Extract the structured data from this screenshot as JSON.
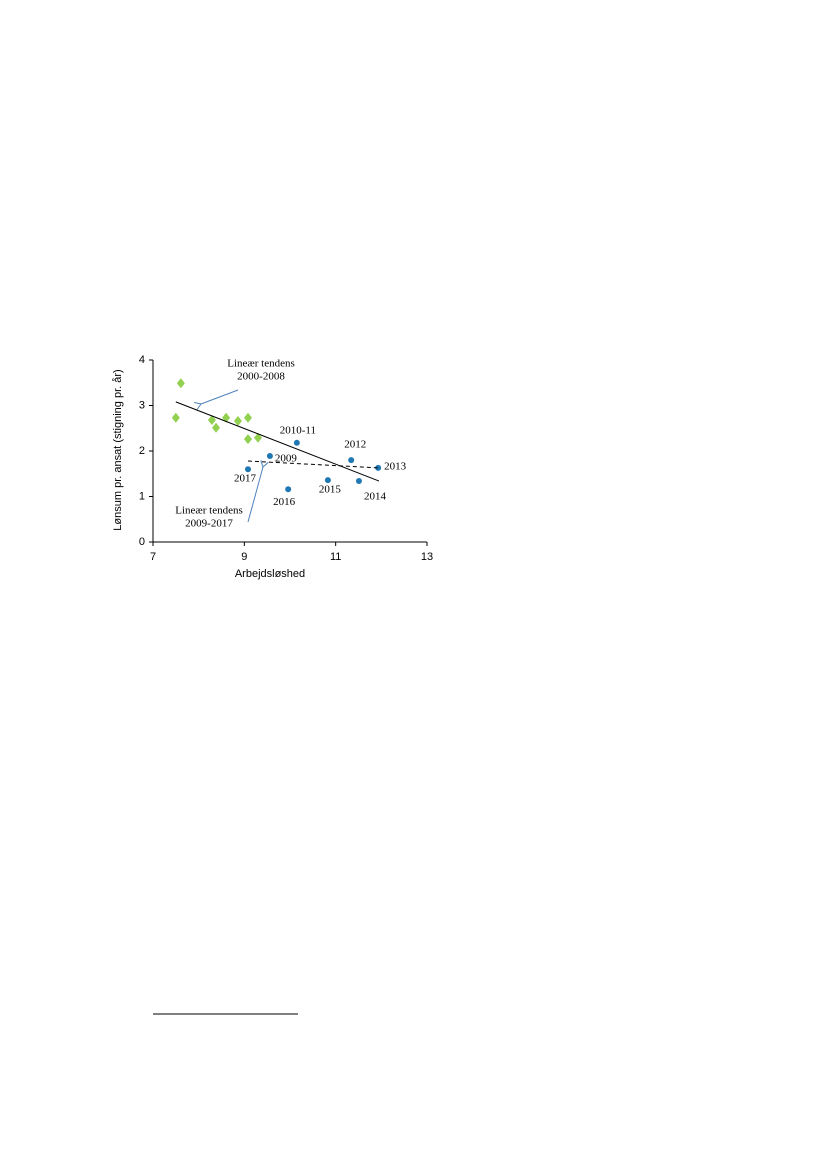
{
  "chart_data": {
    "type": "scatter",
    "x_label": "Arbejdsløshed",
    "y_label": "Lønsum pr. ansat  (stigning pr. år)",
    "xlim": [
      7,
      13
    ],
    "xticks": [
      7,
      9,
      11,
      13
    ],
    "ylim": [
      0,
      4
    ],
    "yticks": [
      0,
      1,
      2,
      3,
      4
    ],
    "series": [
      {
        "color": "#92d050",
        "marker": "diamond",
        "x": [
          7.5,
          7.61,
          8.29,
          8.38,
          8.6,
          8.86,
          9.08,
          9.08,
          9.3
        ],
        "values": [
          2.73,
          3.49,
          2.68,
          2.51,
          2.73,
          2.66,
          2.73,
          2.26,
          2.29
        ]
      },
      {
        "color": "#1f77b4",
        "marker": "circle",
        "x": [
          9.56,
          10.15,
          11.34,
          11.93,
          11.51,
          10.83,
          9.96,
          9.08
        ],
        "values": [
          1.89,
          2.18,
          1.8,
          1.63,
          1.34,
          1.36,
          1.16,
          1.6
        ],
        "labels": [
          "2009",
          "2010-11",
          "2012",
          "2013",
          "2014",
          "2015",
          "2016",
          "2017"
        ]
      },
      {
        "color": "#000000",
        "marker": "line",
        "dash": false,
        "x": [
          7.5,
          11.95
        ],
        "values": [
          3.08,
          1.34
        ]
      },
      {
        "color": "#000000",
        "marker": "line",
        "dash": true,
        "x": [
          9.08,
          11.93
        ],
        "values": [
          1.78,
          1.63
        ]
      }
    ],
    "annotations": [
      [
        "Lineær tendens",
        "2000-2008"
      ],
      [
        "Lineær tendens",
        "2009-2017"
      ]
    ]
  }
}
